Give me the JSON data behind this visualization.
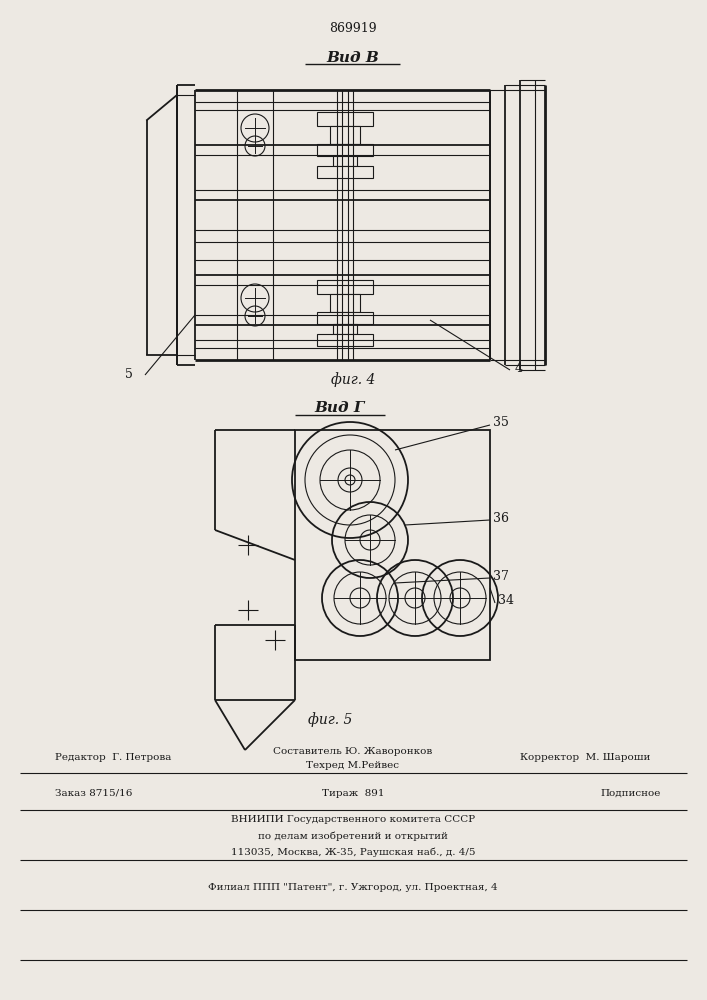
{
  "patent_number": "869919",
  "bg_color": "#ede9e3",
  "fig4_label": "Вид В",
  "fig5_label": "Вид Г",
  "fig4_caption": "фиг. 4",
  "fig5_caption": "фиг. 5",
  "footer_line1_left": "Редактор  Г. Петрова",
  "footer_line1_center_top": "Составитель Ю. Жаворонков",
  "footer_line1_center_bot": "Техред М.Рейвес",
  "footer_line1_right": "Корректор  М. Шароши",
  "footer_line2_left": "Заказ 8715/16",
  "footer_line2_center": "Тираж  891",
  "footer_line2_right": "Подписное",
  "footer_vniip1": "ВНИИПИ Государственного комитета СССР",
  "footer_vniip2": "по делам изобретений и открытий",
  "footer_vniip3": "113035, Москва, Ж-35, Раушская наб., д. 4/5",
  "footer_filial": "Филиал ППП \"Патент\", г. Ужгород, ул. Проектная, 4",
  "line_color": "#1a1a1a"
}
